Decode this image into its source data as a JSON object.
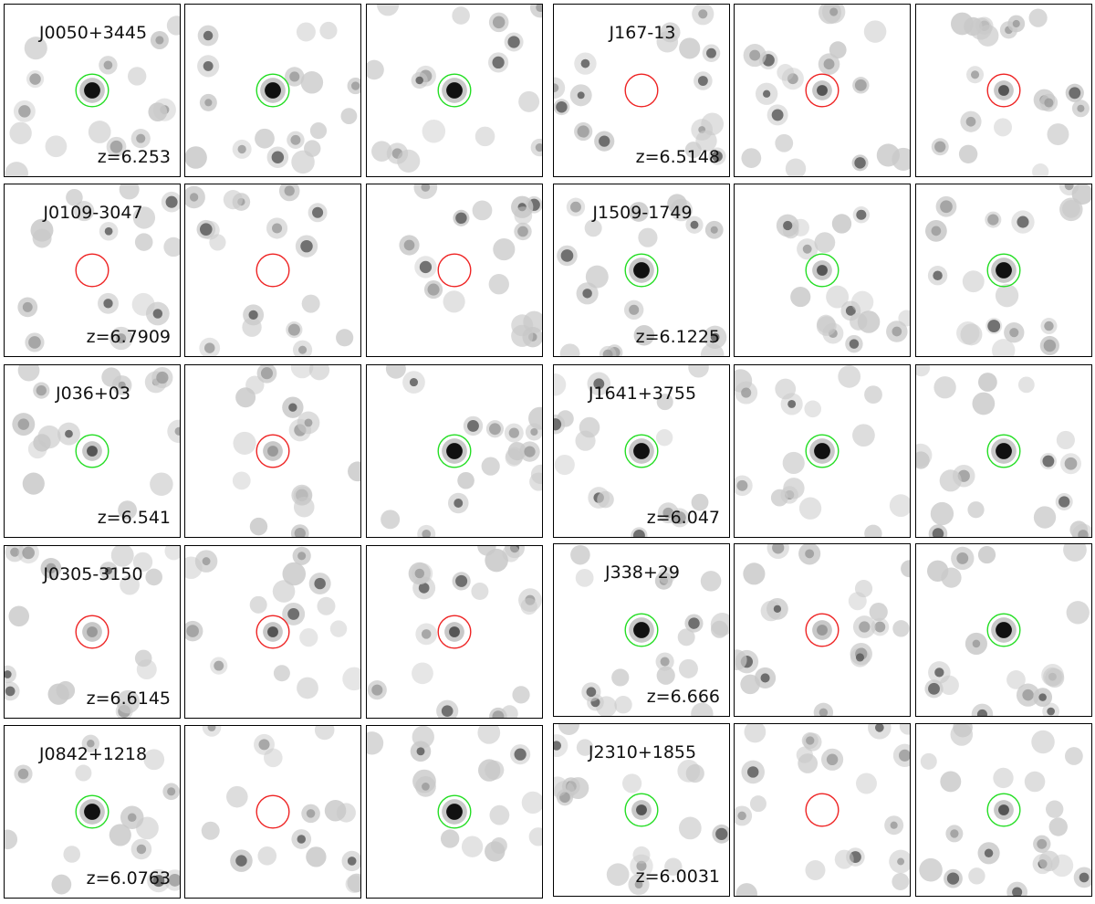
{
  "quasars": [
    {
      "name": "J0050+3445",
      "z": "z=6.253",
      "detections": [
        "detected",
        "detected",
        "detected"
      ],
      "intensity": [
        "strong",
        "strong",
        "strong"
      ]
    },
    {
      "name": "J0109-3047",
      "z": "z=6.7909",
      "detections": [
        "undetected",
        "undetected",
        "undetected"
      ],
      "intensity": [
        "none",
        "none",
        "none"
      ]
    },
    {
      "name": "J036+03",
      "z": "z=6.541",
      "detections": [
        "detected",
        "undetected",
        "detected"
      ],
      "intensity": [
        "mid",
        "weak",
        "strong"
      ]
    },
    {
      "name": "J0305-3150",
      "z": "z=6.6145",
      "detections": [
        "undetected",
        "undetected",
        "undetected"
      ],
      "intensity": [
        "weak",
        "mid",
        "mid"
      ]
    },
    {
      "name": "J0842+1218",
      "z": "z=6.0763",
      "detections": [
        "detected",
        "undetected",
        "detected"
      ],
      "intensity": [
        "strong",
        "none",
        "strong"
      ]
    },
    {
      "name": "J167-13",
      "z": "z=6.5148",
      "detections": [
        "undetected",
        "undetected",
        "undetected"
      ],
      "intensity": [
        "none",
        "mid",
        "mid"
      ]
    },
    {
      "name": "J1509-1749",
      "z": "z=6.1225",
      "detections": [
        "detected",
        "detected",
        "detected"
      ],
      "intensity": [
        "strong",
        "mid",
        "strong"
      ]
    },
    {
      "name": "J1641+3755",
      "z": "z=6.047",
      "detections": [
        "detected",
        "detected",
        "detected"
      ],
      "intensity": [
        "strong",
        "strong",
        "strong"
      ]
    },
    {
      "name": "J338+29",
      "z": "z=6.666",
      "detections": [
        "detected",
        "undetected",
        "detected"
      ],
      "intensity": [
        "strong",
        "weak",
        "strong"
      ]
    },
    {
      "name": "J2310+1855",
      "z": "z=6.0031",
      "detections": [
        "detected",
        "undetected",
        "detected"
      ],
      "intensity": [
        "mid",
        "none",
        "mid"
      ]
    }
  ]
}
